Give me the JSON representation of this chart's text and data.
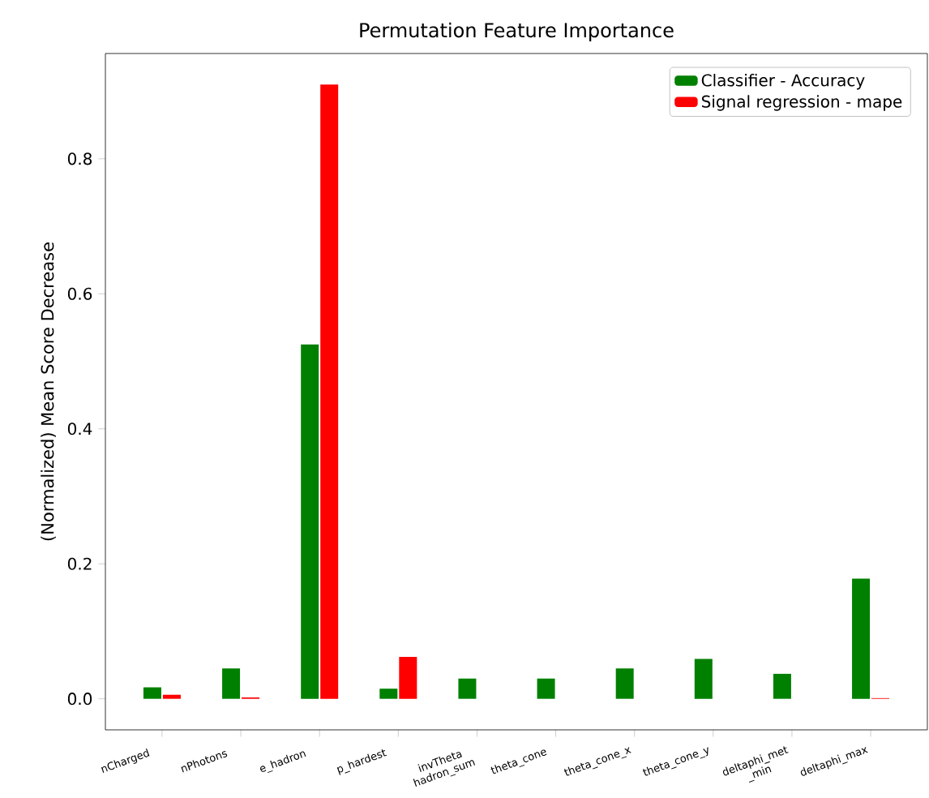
{
  "chart_data": {
    "type": "bar",
    "title": "Permutation Feature Importance",
    "ylabel": "(Normalized) Mean Score Decrease",
    "categories": [
      "nCharged",
      "nPhotons",
      "e_hadron",
      "p_hardest",
      "invTheta hadron_sum",
      "theta_cone",
      "theta_cone_x",
      "theta_cone_y",
      "deltaphi_met _min",
      "deltaphi_max"
    ],
    "series": [
      {
        "name": "Classifier - Accuracy",
        "color": "#008000",
        "values": [
          0.017,
          0.045,
          0.525,
          0.015,
          0.03,
          0.03,
          0.045,
          0.059,
          0.037,
          0.178
        ]
      },
      {
        "name": "Signal regression - mape",
        "color": "#ff0000",
        "values": [
          0.006,
          0.002,
          0.91,
          0.062,
          0,
          0,
          0,
          0,
          0,
          0.001
        ]
      }
    ],
    "ylim": [
      -0.046,
      0.956
    ],
    "yticks": [
      {
        "value": 0,
        "label": "0.0"
      },
      {
        "value": 0.2,
        "label": "0.2"
      },
      {
        "value": 0.4,
        "label": "0.4"
      },
      {
        "value": 0.6,
        "label": "0.6"
      },
      {
        "value": 0.8,
        "label": "0.8"
      }
    ],
    "legend": "top right",
    "grid": false
  }
}
